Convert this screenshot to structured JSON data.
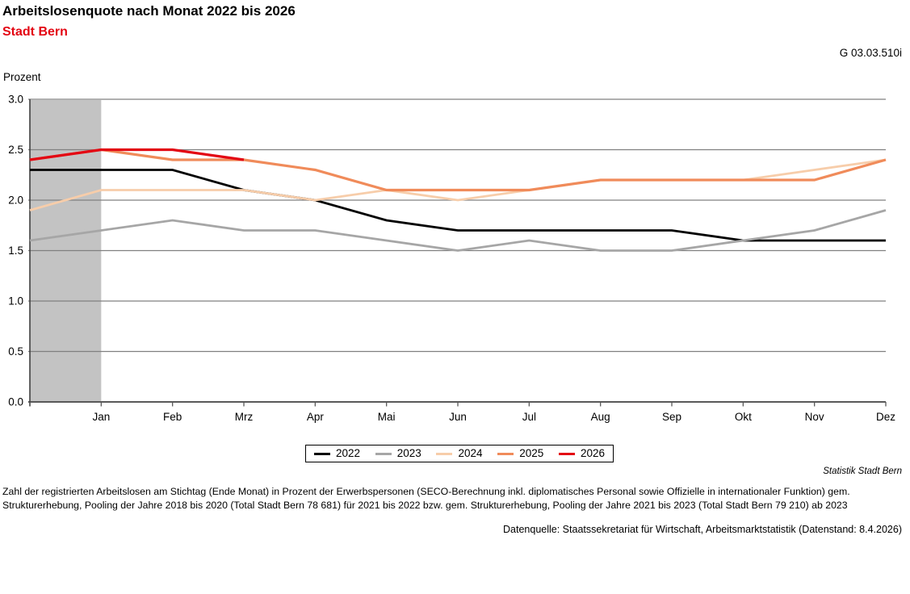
{
  "header": {
    "title": "Arbeitslosenquote nach Monat 2022 bis 2026",
    "subtitle": "Stadt Bern",
    "figure_id": "G 03.03.510i"
  },
  "chart_data": {
    "type": "line",
    "title": "Arbeitslosenquote nach Monat 2022 bis 2026",
    "subtitle": "Stadt Bern",
    "ylabel": "Prozent",
    "ylim": [
      0.0,
      3.0
    ],
    "ytick_step": 0.5,
    "ytick_labels": [
      "0.0",
      "0.5",
      "1.0",
      "1.5",
      "2.0",
      "2.5",
      "3.0"
    ],
    "categories": [
      "Jan",
      "Feb",
      "Mrz",
      "Apr",
      "Mai",
      "Jun",
      "Jul",
      "Aug",
      "Sep",
      "Okt",
      "Nov",
      "Dez"
    ],
    "x_note": "first value of each series is the previous December, plotted in the shaded band left of Jan",
    "series": [
      {
        "name": "2022",
        "color": "#000000",
        "values": [
          2.3,
          2.3,
          2.3,
          2.1,
          2.0,
          1.8,
          1.7,
          1.7,
          1.7,
          1.7,
          1.6,
          1.6,
          1.6
        ]
      },
      {
        "name": "2023",
        "color": "#a6a6a6",
        "values": [
          1.6,
          1.7,
          1.8,
          1.7,
          1.7,
          1.6,
          1.5,
          1.6,
          1.5,
          1.5,
          1.6,
          1.7,
          1.9
        ]
      },
      {
        "name": "2024",
        "color": "#f7cdaa",
        "values": [
          1.9,
          2.1,
          2.1,
          2.1,
          2.0,
          2.1,
          2.0,
          2.1,
          2.2,
          2.2,
          2.2,
          2.3,
          2.4
        ]
      },
      {
        "name": "2025",
        "color": "#f08b5a",
        "values": [
          2.4,
          2.5,
          2.4,
          2.4,
          2.3,
          2.1,
          2.1,
          2.1,
          2.2,
          2.2,
          2.2,
          2.2,
          2.4
        ]
      },
      {
        "name": "2026",
        "color": "#e30613",
        "values": [
          2.4,
          2.5,
          2.5,
          2.4
        ]
      }
    ],
    "shaded_band": {
      "covers": "previous December to Jan",
      "color": "#c3c3c3"
    },
    "grid": true,
    "gridline_color": "#808080",
    "axis_color": "#595959",
    "legend_position": "bottom"
  },
  "footer": {
    "credit": "Statistik Stadt Bern",
    "note_line1": "Zahl der registrierten Arbeitslosen am Stichtag (Ende Monat) in Prozent der Erwerbspersonen (SECO-Berechnung inkl. diplomatisches Personal sowie Offizielle in internationaler Funktion) gem.",
    "note_line2": "Strukturerhebung, Pooling der Jahre 2018 bis 2020 (Total Stadt Bern 78 681) für 2021 bis 2022 bzw. gem. Strukturerhebung, Pooling der Jahre 2021 bis 2023 (Total Stadt Bern 79 210) ab 2023",
    "source": "Datenquelle: Staatssekretariat für Wirtschaft, Arbeitsmarktstatistik (Datenstand: 8.4.2026)"
  }
}
